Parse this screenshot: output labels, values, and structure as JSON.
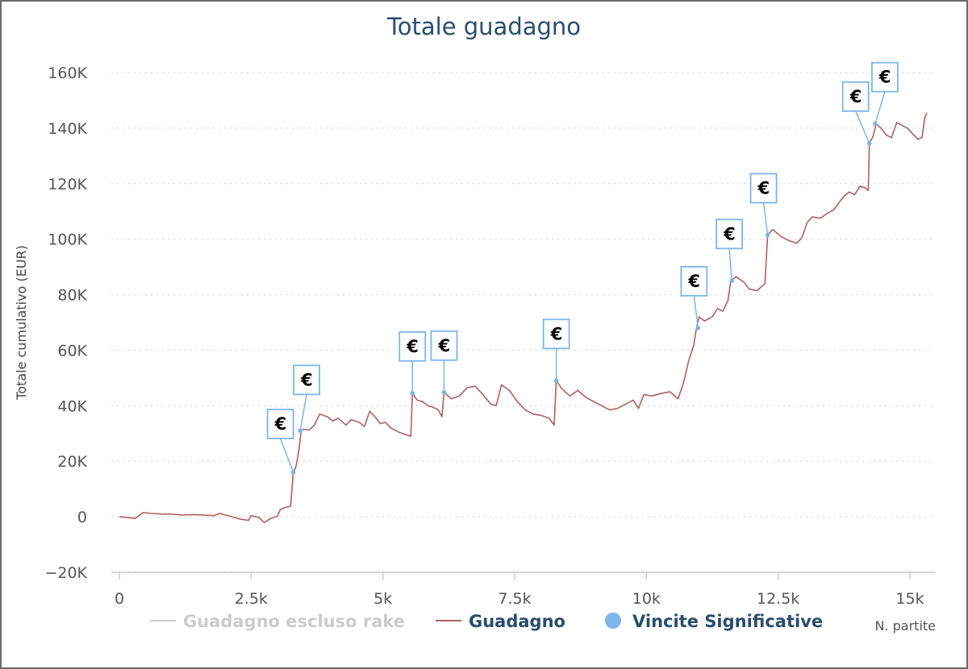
{
  "chart_data": {
    "type": "line",
    "title": "Totale guadagno",
    "xlabel": "N. partite",
    "ylabel": "Totale cumulativo (EUR)",
    "xlim": [
      0,
      15300
    ],
    "ylim": [
      -20000,
      160000
    ],
    "x_ticks": [
      0,
      2500,
      5000,
      7500,
      10000,
      12500,
      15000
    ],
    "x_tick_labels": [
      "0",
      "2.5k",
      "5k",
      "7.5k",
      "10k",
      "12.5k",
      "15k"
    ],
    "y_ticks": [
      -20000,
      0,
      20000,
      40000,
      60000,
      80000,
      100000,
      120000,
      140000,
      160000
    ],
    "y_tick_labels": [
      "−20K",
      "0",
      "20K",
      "40K",
      "60K",
      "80K",
      "100K",
      "120K",
      "140K",
      "160K"
    ],
    "grid": "horizontal dotted",
    "legend_placement": "bottom",
    "legend": [
      {
        "name": "Guadagno escluso rake",
        "color": "#cccccc",
        "marker": "line"
      },
      {
        "name": "Guadagno",
        "color": "#b06060",
        "marker": "line"
      },
      {
        "name": "Vincite Significative",
        "color": "#7cb5ec",
        "marker": "dot"
      }
    ],
    "series": [
      {
        "name": "Guadagno",
        "color": "#b06060",
        "points": [
          [
            0,
            0
          ],
          [
            150,
            -300
          ],
          [
            300,
            -600
          ],
          [
            450,
            1500
          ],
          [
            600,
            1200
          ],
          [
            800,
            1000
          ],
          [
            1000,
            900
          ],
          [
            1200,
            600
          ],
          [
            1400,
            800
          ],
          [
            1600,
            600
          ],
          [
            1800,
            400
          ],
          [
            1900,
            1200
          ],
          [
            2100,
            200
          ],
          [
            2300,
            -900
          ],
          [
            2450,
            -1300
          ],
          [
            2500,
            400
          ],
          [
            2650,
            -300
          ],
          [
            2750,
            -2100
          ],
          [
            2850,
            -800
          ],
          [
            3000,
            200
          ],
          [
            3050,
            2500
          ],
          [
            3150,
            3400
          ],
          [
            3250,
            3800
          ],
          [
            3300,
            16000
          ],
          [
            3350,
            18000
          ],
          [
            3400,
            23000
          ],
          [
            3450,
            31000
          ],
          [
            3500,
            31500
          ],
          [
            3600,
            31200
          ],
          [
            3700,
            33000
          ],
          [
            3800,
            37000
          ],
          [
            3950,
            36000
          ],
          [
            4050,
            34500
          ],
          [
            4150,
            35500
          ],
          [
            4300,
            33000
          ],
          [
            4400,
            35000
          ],
          [
            4550,
            34000
          ],
          [
            4650,
            32500
          ],
          [
            4750,
            38000
          ],
          [
            4850,
            36000
          ],
          [
            4950,
            33500
          ],
          [
            5050,
            34000
          ],
          [
            5150,
            32000
          ],
          [
            5300,
            30500
          ],
          [
            5450,
            29500
          ],
          [
            5530,
            29000
          ],
          [
            5560,
            44500
          ],
          [
            5650,
            42000
          ],
          [
            5750,
            41500
          ],
          [
            5850,
            40000
          ],
          [
            5950,
            39500
          ],
          [
            6050,
            38500
          ],
          [
            6120,
            36000
          ],
          [
            6160,
            44800
          ],
          [
            6300,
            42500
          ],
          [
            6450,
            43500
          ],
          [
            6600,
            46500
          ],
          [
            6750,
            47000
          ],
          [
            6900,
            44000
          ],
          [
            7050,
            40500
          ],
          [
            7150,
            40000
          ],
          [
            7250,
            47500
          ],
          [
            7400,
            45500
          ],
          [
            7550,
            41500
          ],
          [
            7700,
            38500
          ],
          [
            7850,
            37000
          ],
          [
            8000,
            36500
          ],
          [
            8150,
            35500
          ],
          [
            8250,
            33000
          ],
          [
            8290,
            49000
          ],
          [
            8400,
            46000
          ],
          [
            8550,
            43500
          ],
          [
            8700,
            45500
          ],
          [
            8850,
            43000
          ],
          [
            9000,
            41500
          ],
          [
            9150,
            40000
          ],
          [
            9300,
            38500
          ],
          [
            9450,
            39000
          ],
          [
            9600,
            40500
          ],
          [
            9750,
            42000
          ],
          [
            9850,
            39000
          ],
          [
            9950,
            44000
          ],
          [
            10100,
            43500
          ],
          [
            10300,
            44500
          ],
          [
            10450,
            45000
          ],
          [
            10600,
            42500
          ],
          [
            10700,
            48000
          ],
          [
            10800,
            56000
          ],
          [
            10900,
            62000
          ],
          [
            10950,
            68000
          ],
          [
            11000,
            72000
          ],
          [
            11100,
            70500
          ],
          [
            11250,
            72000
          ],
          [
            11350,
            75000
          ],
          [
            11450,
            74000
          ],
          [
            11550,
            78000
          ],
          [
            11600,
            85000
          ],
          [
            11700,
            86500
          ],
          [
            11850,
            84500
          ],
          [
            11950,
            82000
          ],
          [
            12100,
            81500
          ],
          [
            12250,
            84000
          ],
          [
            12300,
            101500
          ],
          [
            12400,
            103500
          ],
          [
            12550,
            101000
          ],
          [
            12700,
            99500
          ],
          [
            12850,
            98500
          ],
          [
            12950,
            100500
          ],
          [
            13050,
            106000
          ],
          [
            13150,
            108000
          ],
          [
            13300,
            107500
          ],
          [
            13450,
            109500
          ],
          [
            13550,
            110500
          ],
          [
            13650,
            113000
          ],
          [
            13750,
            115500
          ],
          [
            13850,
            117000
          ],
          [
            13950,
            116000
          ],
          [
            14050,
            119000
          ],
          [
            14150,
            118500
          ],
          [
            14210,
            117500
          ],
          [
            14230,
            134500
          ],
          [
            14300,
            137000
          ],
          [
            14360,
            141500
          ],
          [
            14450,
            140000
          ],
          [
            14550,
            137500
          ],
          [
            14650,
            136500
          ],
          [
            14750,
            142000
          ],
          [
            14850,
            141000
          ],
          [
            14950,
            140000
          ],
          [
            15050,
            138000
          ],
          [
            15150,
            136000
          ],
          [
            15230,
            136500
          ],
          [
            15280,
            143500
          ],
          [
            15320,
            145500
          ]
        ]
      },
      {
        "name": "Vincite Significative",
        "color": "#7cb5ec",
        "flag_label": "€",
        "points": [
          [
            3300,
            16000
          ],
          [
            3430,
            31000
          ],
          [
            5560,
            44500
          ],
          [
            6160,
            44800
          ],
          [
            8290,
            49000
          ],
          [
            10980,
            68000
          ],
          [
            11620,
            85000
          ],
          [
            12300,
            101500
          ],
          [
            14230,
            134500
          ],
          [
            14340,
            141500
          ]
        ]
      }
    ]
  }
}
